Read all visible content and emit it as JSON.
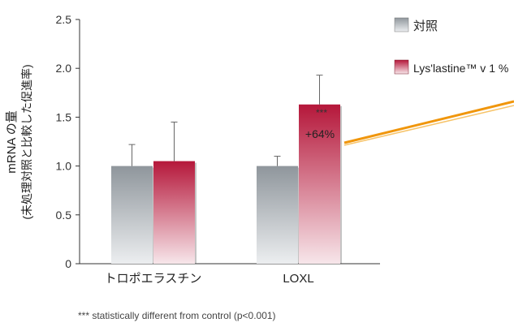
{
  "chart_data": {
    "type": "bar",
    "ylabel_line1": "mRNA の量",
    "ylabel_line2": "(未処理対照と比較した促進率)",
    "xlabel": "",
    "ylim": [
      0,
      2.5
    ],
    "yticks": [
      {
        "value": 0,
        "label": "0"
      },
      {
        "value": 0.5,
        "label": "0.5"
      },
      {
        "value": 1.0,
        "label": "1.0"
      },
      {
        "value": 1.5,
        "label": "1.5"
      },
      {
        "value": 2.0,
        "label": "2.0"
      },
      {
        "value": 2.5,
        "label": "2.5"
      }
    ],
    "categories": [
      "トロポエラスチン",
      "LOXL"
    ],
    "series": [
      {
        "name": "対照",
        "values": [
          1.0,
          1.0
        ],
        "errors": [
          0.22,
          0.1
        ],
        "color_top": "#8f969c",
        "color_bottom": "#eceef0"
      },
      {
        "name": "Lys'lastine™ v 1 %",
        "values": [
          1.05,
          1.63
        ],
        "errors": [
          0.4,
          0.3
        ],
        "color_top": "#b5173a",
        "color_bottom": "#f7e6ea"
      }
    ],
    "annotation": {
      "stars": "***",
      "text": "+64%"
    },
    "legend_position": "right",
    "grid": false,
    "accent_line_color": "#f0960c"
  },
  "footnote": "*** statistically different from control (p<0.001)"
}
